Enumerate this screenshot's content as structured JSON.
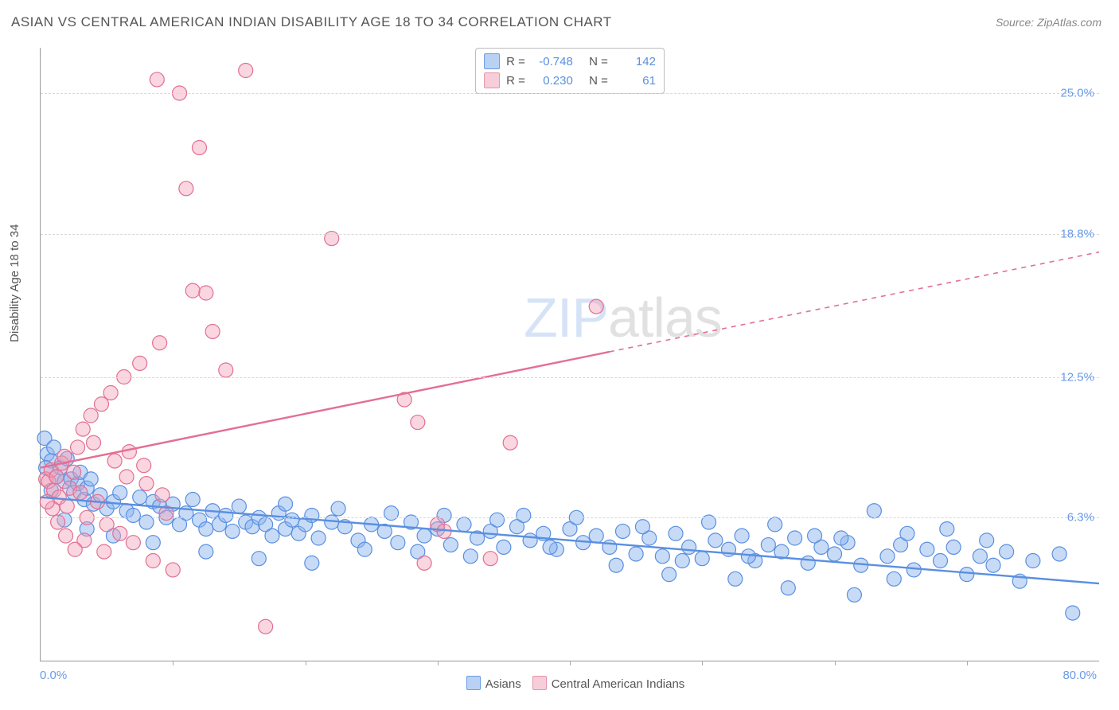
{
  "title": "ASIAN VS CENTRAL AMERICAN INDIAN DISABILITY AGE 18 TO 34 CORRELATION CHART",
  "source": "Source: ZipAtlas.com",
  "ylabel": "Disability Age 18 to 34",
  "watermark_zip": "ZIP",
  "watermark_atlas": "atlas",
  "chart": {
    "type": "scatter",
    "background_color": "#ffffff",
    "grid_color": "#d8d8d8",
    "axis_color": "#999999",
    "xlim": [
      0,
      80
    ],
    "ylim": [
      0,
      27
    ],
    "x_tick_left": "0.0%",
    "x_tick_right": "80.0%",
    "x_minor_ticks": [
      10,
      20,
      30,
      40,
      50,
      60,
      70
    ],
    "y_ticks": [
      {
        "v": 6.3,
        "label": "6.3%"
      },
      {
        "v": 12.5,
        "label": "12.5%"
      },
      {
        "v": 18.8,
        "label": "18.8%"
      },
      {
        "v": 25.0,
        "label": "25.0%"
      }
    ],
    "marker_radius": 9,
    "marker_stroke_width": 1.2,
    "trend_line_width": 2.4,
    "series": [
      {
        "name": "Asians",
        "fill": "rgba(137,180,238,0.48)",
        "stroke": "#5a8fe0",
        "legend_fill": "#b9d2f3",
        "legend_border": "#6a9be8",
        "R": "-0.748",
        "N": "142",
        "trend": {
          "x1": 0,
          "y1": 7.2,
          "x2": 80,
          "y2": 3.4,
          "dash": false
        },
        "points": [
          [
            0.3,
            9.8
          ],
          [
            0.5,
            9.1
          ],
          [
            0.8,
            8.8
          ],
          [
            1.0,
            9.4
          ],
          [
            1.2,
            8.1
          ],
          [
            1.5,
            8.5
          ],
          [
            1.8,
            7.9
          ],
          [
            2.0,
            8.9
          ],
          [
            2.3,
            8.0
          ],
          [
            2.5,
            7.4
          ],
          [
            2.8,
            7.8
          ],
          [
            3.0,
            8.3
          ],
          [
            3.3,
            7.1
          ],
          [
            3.5,
            7.6
          ],
          [
            3.8,
            8.0
          ],
          [
            4.0,
            6.9
          ],
          [
            4.5,
            7.3
          ],
          [
            5.0,
            6.7
          ],
          [
            5.5,
            7.0
          ],
          [
            6.0,
            7.4
          ],
          [
            6.5,
            6.6
          ],
          [
            7.0,
            6.4
          ],
          [
            7.5,
            7.2
          ],
          [
            8.0,
            6.1
          ],
          [
            8.5,
            7.0
          ],
          [
            9.0,
            6.8
          ],
          [
            9.5,
            6.3
          ],
          [
            10.0,
            6.9
          ],
          [
            10.5,
            6.0
          ],
          [
            11.0,
            6.5
          ],
          [
            11.5,
            7.1
          ],
          [
            12.0,
            6.2
          ],
          [
            12.5,
            5.8
          ],
          [
            13.0,
            6.6
          ],
          [
            13.5,
            6.0
          ],
          [
            14.0,
            6.4
          ],
          [
            14.5,
            5.7
          ],
          [
            15.0,
            6.8
          ],
          [
            15.5,
            6.1
          ],
          [
            16.0,
            5.9
          ],
          [
            16.5,
            6.3
          ],
          [
            17.0,
            6.0
          ],
          [
            17.5,
            5.5
          ],
          [
            18.0,
            6.5
          ],
          [
            18.5,
            5.8
          ],
          [
            19.0,
            6.2
          ],
          [
            19.5,
            5.6
          ],
          [
            20.0,
            6.0
          ],
          [
            20.5,
            6.4
          ],
          [
            21.0,
            5.4
          ],
          [
            22.0,
            6.1
          ],
          [
            23.0,
            5.9
          ],
          [
            24.0,
            5.3
          ],
          [
            25.0,
            6.0
          ],
          [
            26.0,
            5.7
          ],
          [
            27.0,
            5.2
          ],
          [
            28.0,
            6.1
          ],
          [
            29.0,
            5.5
          ],
          [
            30.0,
            5.8
          ],
          [
            31.0,
            5.1
          ],
          [
            32.0,
            6.0
          ],
          [
            33.0,
            5.4
          ],
          [
            34.0,
            5.7
          ],
          [
            35.0,
            5.0
          ],
          [
            36.0,
            5.9
          ],
          [
            37.0,
            5.3
          ],
          [
            38.0,
            5.6
          ],
          [
            39.0,
            4.9
          ],
          [
            40.0,
            5.8
          ],
          [
            41.0,
            5.2
          ],
          [
            42.0,
            5.5
          ],
          [
            43.0,
            5.0
          ],
          [
            44.0,
            5.7
          ],
          [
            45.0,
            4.7
          ],
          [
            46.0,
            5.4
          ],
          [
            47.0,
            4.6
          ],
          [
            48.0,
            5.6
          ],
          [
            49.0,
            5.0
          ],
          [
            50.0,
            4.5
          ],
          [
            51.0,
            5.3
          ],
          [
            52.0,
            4.9
          ],
          [
            53.0,
            5.5
          ],
          [
            54.0,
            4.4
          ],
          [
            55.0,
            5.1
          ],
          [
            56.0,
            4.8
          ],
          [
            57.0,
            5.4
          ],
          [
            58.0,
            4.3
          ],
          [
            59.0,
            5.0
          ],
          [
            60.0,
            4.7
          ],
          [
            61.0,
            5.2
          ],
          [
            62.0,
            4.2
          ],
          [
            63.0,
            6.6
          ],
          [
            64.0,
            4.6
          ],
          [
            65.0,
            5.1
          ],
          [
            66.0,
            4.0
          ],
          [
            67.0,
            4.9
          ],
          [
            68.0,
            4.4
          ],
          [
            69.0,
            5.0
          ],
          [
            70.0,
            3.8
          ],
          [
            71.0,
            4.6
          ],
          [
            72.0,
            4.2
          ],
          [
            73.0,
            4.8
          ],
          [
            74.0,
            3.5
          ],
          [
            75.0,
            4.4
          ],
          [
            77.0,
            4.7
          ],
          [
            78.0,
            2.1
          ],
          [
            61.5,
            2.9
          ],
          [
            56.5,
            3.2
          ],
          [
            52.5,
            3.6
          ],
          [
            47.5,
            3.8
          ],
          [
            43.5,
            4.2
          ],
          [
            40.5,
            6.3
          ],
          [
            36.5,
            6.4
          ],
          [
            32.5,
            4.6
          ],
          [
            28.5,
            4.8
          ],
          [
            24.5,
            4.9
          ],
          [
            20.5,
            4.3
          ],
          [
            16.5,
            4.5
          ],
          [
            12.5,
            4.8
          ],
          [
            8.5,
            5.2
          ],
          [
            5.5,
            5.5
          ],
          [
            3.5,
            5.8
          ],
          [
            1.8,
            6.2
          ],
          [
            0.8,
            7.5
          ],
          [
            45.5,
            5.9
          ],
          [
            50.5,
            6.1
          ],
          [
            55.5,
            6.0
          ],
          [
            60.5,
            5.4
          ],
          [
            65.5,
            5.6
          ],
          [
            68.5,
            5.8
          ],
          [
            71.5,
            5.3
          ],
          [
            64.5,
            3.6
          ],
          [
            58.5,
            5.5
          ],
          [
            53.5,
            4.6
          ],
          [
            48.5,
            4.4
          ],
          [
            38.5,
            5.0
          ],
          [
            34.5,
            6.2
          ],
          [
            30.5,
            6.4
          ],
          [
            26.5,
            6.5
          ],
          [
            22.5,
            6.7
          ],
          [
            18.5,
            6.9
          ],
          [
            0.4,
            8.5
          ]
        ]
      },
      {
        "name": "Central American Indians",
        "fill": "rgba(240,158,180,0.42)",
        "stroke": "#e36f93",
        "legend_fill": "#f6cdd8",
        "legend_border": "#e693ac",
        "R": "0.230",
        "N": "61",
        "trend": {
          "x1": 0,
          "y1": 8.5,
          "x2": 80,
          "y2": 18.0,
          "dash_from_x": 43
        },
        "points": [
          [
            0.4,
            8.0
          ],
          [
            0.6,
            7.9
          ],
          [
            0.8,
            8.4
          ],
          [
            1.0,
            7.5
          ],
          [
            1.2,
            8.1
          ],
          [
            1.4,
            7.2
          ],
          [
            1.6,
            8.7
          ],
          [
            1.8,
            9.0
          ],
          [
            2.0,
            6.8
          ],
          [
            2.2,
            7.6
          ],
          [
            2.5,
            8.3
          ],
          [
            2.8,
            9.4
          ],
          [
            3.0,
            7.4
          ],
          [
            3.2,
            10.2
          ],
          [
            3.5,
            6.3
          ],
          [
            3.8,
            10.8
          ],
          [
            4.0,
            9.6
          ],
          [
            4.3,
            7.0
          ],
          [
            4.6,
            11.3
          ],
          [
            5.0,
            6.0
          ],
          [
            5.3,
            11.8
          ],
          [
            5.6,
            8.8
          ],
          [
            6.0,
            5.6
          ],
          [
            6.3,
            12.5
          ],
          [
            6.7,
            9.2
          ],
          [
            7.0,
            5.2
          ],
          [
            7.5,
            13.1
          ],
          [
            8.0,
            7.8
          ],
          [
            8.5,
            4.4
          ],
          [
            9.0,
            14.0
          ],
          [
            9.5,
            6.5
          ],
          [
            10.0,
            4.0
          ],
          [
            10.5,
            25.0
          ],
          [
            8.8,
            25.6
          ],
          [
            11.0,
            20.8
          ],
          [
            11.5,
            16.3
          ],
          [
            12.0,
            22.6
          ],
          [
            12.5,
            16.2
          ],
          [
            13.0,
            14.5
          ],
          [
            15.5,
            26.0
          ],
          [
            17.0,
            1.5
          ],
          [
            14.0,
            12.8
          ],
          [
            4.8,
            4.8
          ],
          [
            3.3,
            5.3
          ],
          [
            2.6,
            4.9
          ],
          [
            1.9,
            5.5
          ],
          [
            1.3,
            6.1
          ],
          [
            0.9,
            6.7
          ],
          [
            0.5,
            7.0
          ],
          [
            6.5,
            8.1
          ],
          [
            7.8,
            8.6
          ],
          [
            9.2,
            7.3
          ],
          [
            22.0,
            18.6
          ],
          [
            27.5,
            11.5
          ],
          [
            28.5,
            10.5
          ],
          [
            29.0,
            4.3
          ],
          [
            30.0,
            6.0
          ],
          [
            35.5,
            9.6
          ],
          [
            42.0,
            15.6
          ],
          [
            34.0,
            4.5
          ],
          [
            30.5,
            5.7
          ]
        ]
      }
    ],
    "legend_bottom": [
      {
        "label": "Asians",
        "fill": "#b9d2f3",
        "border": "#6a9be8"
      },
      {
        "label": "Central American Indians",
        "fill": "#f6cdd8",
        "border": "#e693ac"
      }
    ]
  }
}
